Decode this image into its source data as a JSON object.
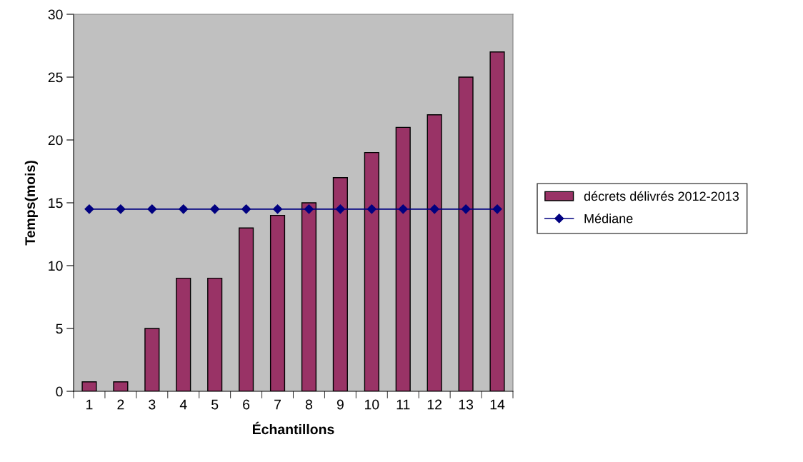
{
  "chart_data": {
    "type": "bar",
    "xlabel": "Échantillons",
    "ylabel": "Temps(mois)",
    "categories": [
      "1",
      "2",
      "3",
      "4",
      "5",
      "6",
      "7",
      "8",
      "9",
      "10",
      "11",
      "12",
      "13",
      "14"
    ],
    "series": [
      {
        "name": "décrets délivrés 2012-2013",
        "color": "#993366",
        "values": [
          0.75,
          0.75,
          5,
          9,
          9,
          13,
          14,
          15,
          17,
          19,
          21,
          22,
          25,
          27
        ]
      },
      {
        "name": "Médiane",
        "type": "line",
        "color": "#000080",
        "values": [
          14.5,
          14.5,
          14.5,
          14.5,
          14.5,
          14.5,
          14.5,
          14.5,
          14.5,
          14.5,
          14.5,
          14.5,
          14.5,
          14.5
        ]
      }
    ],
    "ylim": [
      0,
      30
    ],
    "yticks": [
      0,
      5,
      10,
      15,
      20,
      25,
      30
    ],
    "grid": false,
    "legend": "right",
    "marker": "diamond",
    "line_style": "solid"
  }
}
